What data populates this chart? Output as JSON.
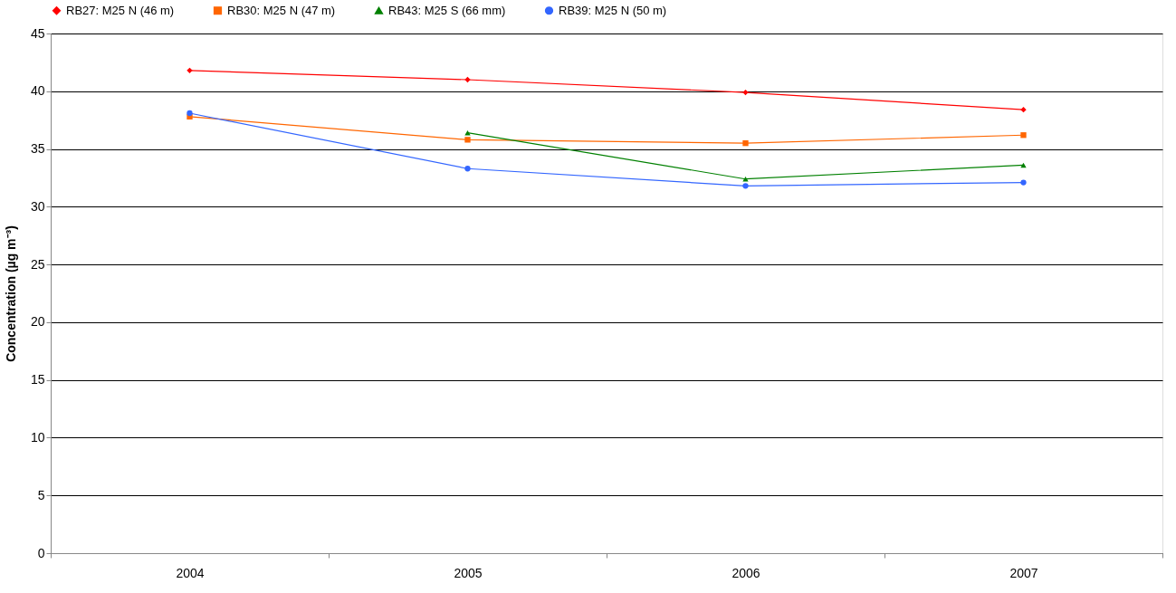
{
  "chart_data": {
    "type": "line",
    "ylabel": "Concentration (µg m⁻³)",
    "categories": [
      "2004",
      "2005",
      "2006",
      "2007"
    ],
    "series": [
      {
        "name": "RB27: M25 N (46 m)",
        "color": "#ff0000",
        "marker": "diamond",
        "values": [
          41.8,
          41.0,
          39.9,
          38.4
        ]
      },
      {
        "name": "RB30: M25 N (47 m)",
        "color": "#ff6600",
        "marker": "square",
        "values": [
          37.8,
          35.8,
          35.5,
          36.2
        ]
      },
      {
        "name": "RB43: M25 S (66 mm)",
        "color": "#008000",
        "marker": "triangle",
        "values": [
          null,
          36.4,
          32.4,
          33.6
        ]
      },
      {
        "name": "RB39: M25 N (50 m)",
        "color": "#3366ff",
        "marker": "circle",
        "values": [
          38.1,
          33.3,
          31.8,
          32.1
        ]
      }
    ],
    "ylim": [
      0,
      45
    ],
    "yticks": [
      0,
      5,
      10,
      15,
      20,
      25,
      30,
      35,
      40,
      45
    ],
    "grid": "y",
    "legend": "top",
    "line_style": "solid"
  }
}
